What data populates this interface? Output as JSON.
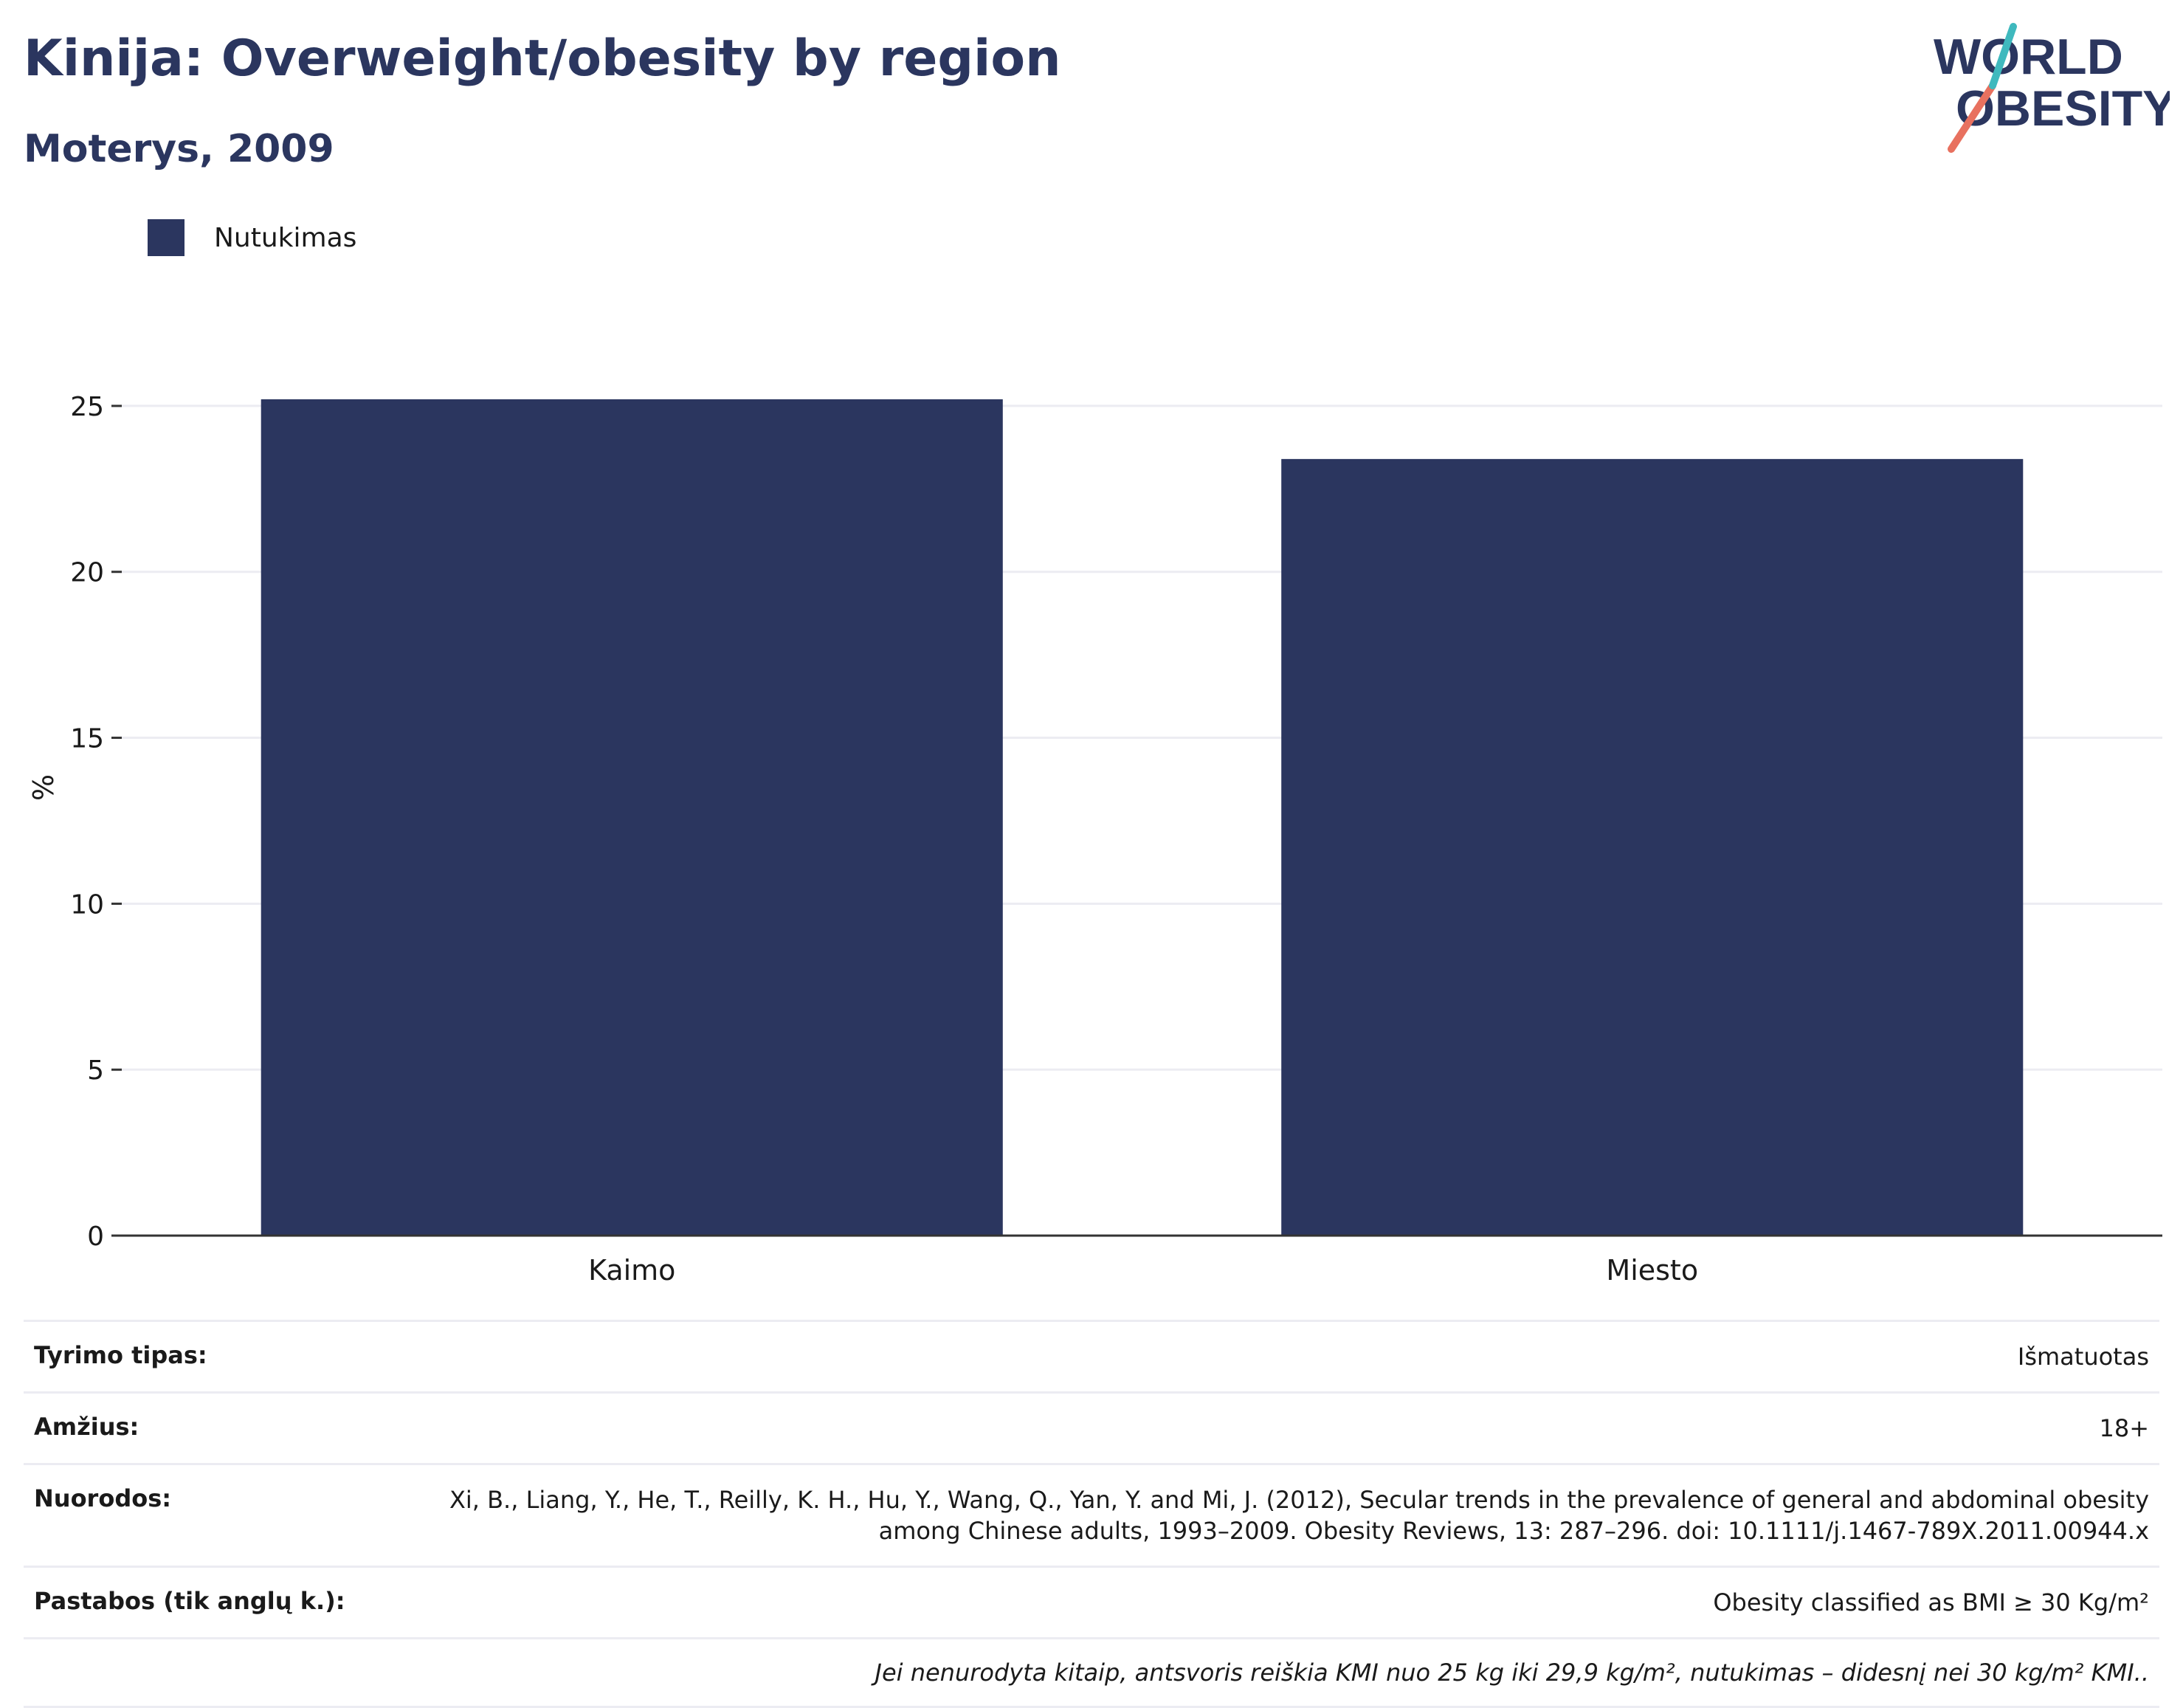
{
  "header": {
    "title": "Kinija: Overweight/obesity by region",
    "subtitle": "Moterys, 2009",
    "logo_line1": "WORLD",
    "logo_line2": "OBESITY"
  },
  "colors": {
    "bar": "#2b365f",
    "title": "#2b365f",
    "logo_teal": "#3fb9be",
    "logo_coral": "#e8715f",
    "grid": "#ececf2"
  },
  "chart_data": {
    "type": "bar",
    "categories": [
      "Kaimo",
      "Miesto"
    ],
    "series": [
      {
        "name": "Nutukimas",
        "values": [
          25.2,
          23.4
        ]
      }
    ],
    "ylabel": "%",
    "ylim": [
      0,
      27
    ],
    "yticks": [
      0,
      5,
      10,
      15,
      20,
      25
    ],
    "grid": true,
    "legend_position": "top-left"
  },
  "meta": {
    "survey_type_label": "Tyrimo tipas:",
    "survey_type_value": "Išmatuotas",
    "age_label": "Amžius:",
    "age_value": "18+",
    "refs_label": "Nuorodos:",
    "refs_value": "Xi, B., Liang, Y., He, T., Reilly, K. H., Hu, Y., Wang, Q., Yan, Y. and Mi, J. (2012), Secular trends in the prevalence of general and abdominal obesity among Chinese adults, 1993–2009. Obesity Reviews, 13: 287–296. doi: 10.1111/j.1467-789X.2011.00944.x",
    "notes_label": "Pastabos (tik anglų k.):",
    "notes_value": "Obesity classified as BMI ≥ 30 Kg/m²",
    "footnote": "Jei nenurodyta kitaip, antsvoris reiškia KMI nuo 25 kg iki 29,9 kg/m², nutukimas – didesnį nei 30 kg/m² KMI.."
  }
}
